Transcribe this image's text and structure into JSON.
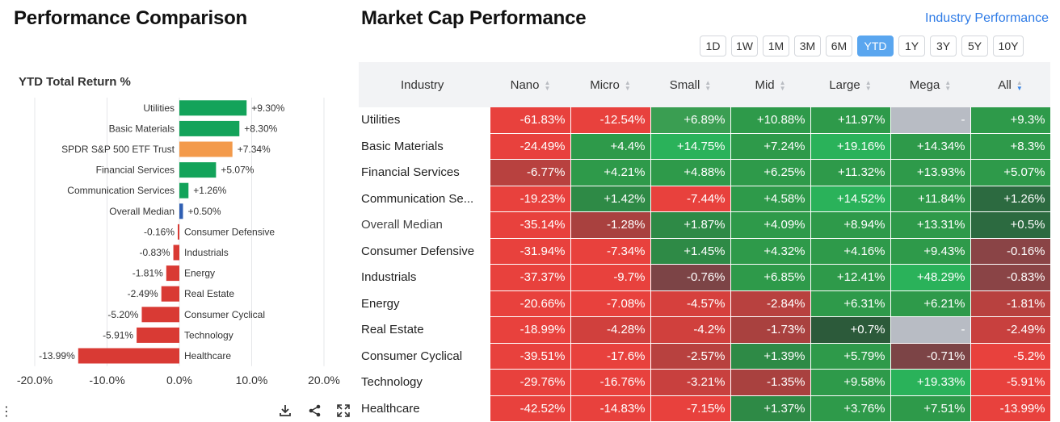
{
  "left_panel": {
    "title": "Performance Comparison",
    "subtitle": "YTD Total Return %",
    "tools": [
      "download-icon",
      "share-icon",
      "expand-icon"
    ]
  },
  "chart_data": {
    "type": "bar",
    "orientation": "horizontal",
    "title": "YTD Total Return %",
    "categories": [
      "Utilities",
      "Basic Materials",
      "SPDR S&P 500 ETF Trust",
      "Financial Services",
      "Communication Services",
      "Overall Median",
      "Consumer Defensive",
      "Industrials",
      "Energy",
      "Real Estate",
      "Consumer Cyclical",
      "Technology",
      "Healthcare"
    ],
    "values": [
      9.3,
      8.3,
      7.34,
      5.07,
      1.26,
      0.5,
      -0.16,
      -0.83,
      -1.81,
      -2.49,
      -5.2,
      -5.91,
      -13.99
    ],
    "value_labels": [
      "+9.30%",
      "+8.30%",
      "+7.34%",
      "+5.07%",
      "+1.26%",
      "+0.50%",
      "-0.16%",
      "-0.83%",
      "-1.81%",
      "-2.49%",
      "-5.20%",
      "-5.91%",
      "-13.99%"
    ],
    "bar_colors": [
      "#13a35a",
      "#13a35a",
      "#f39a4b",
      "#13a35a",
      "#13a35a",
      "#2f5fb3",
      "#d93a34",
      "#d93a34",
      "#d93a34",
      "#d93a34",
      "#d93a34",
      "#d93a34",
      "#d93a34"
    ],
    "xlim": [
      -20,
      20
    ],
    "x_ticks": [
      -20,
      -10,
      0,
      10,
      20
    ],
    "x_tick_labels": [
      "-20.0%",
      "-10.0%",
      "0.0%",
      "10.0%",
      "20.0%"
    ],
    "grid": true
  },
  "right_panel": {
    "title": "Market Cap Performance",
    "link": "Industry Performance",
    "timeframes": [
      "1D",
      "1W",
      "1M",
      "3M",
      "6M",
      "YTD",
      "1Y",
      "3Y",
      "5Y",
      "10Y"
    ],
    "active_timeframe": "YTD",
    "headers": [
      "Industry",
      "Nano",
      "Micro",
      "Small",
      "Mid",
      "Large",
      "Mega",
      "All"
    ],
    "sorted_column": "All",
    "rows": [
      {
        "name": "Utilities",
        "values": [
          "-61.83%",
          "-12.54%",
          "+6.89%",
          "+10.88%",
          "+11.97%",
          "-",
          "+9.3%"
        ],
        "colors": [
          "#e8413d",
          "#e8413d",
          "#3a9e52",
          "#2e9a4a",
          "#2e9a4a",
          "#b8bcc4",
          "#2e9a4a"
        ]
      },
      {
        "name": "Basic Materials",
        "values": [
          "-24.49%",
          "+4.4%",
          "+14.75%",
          "+7.24%",
          "+19.16%",
          "+14.34%",
          "+8.3%"
        ],
        "colors": [
          "#e8413d",
          "#2e9a4a",
          "#2ab25a",
          "#2e9a4a",
          "#2ab25a",
          "#2e9a4a",
          "#2e9a4a"
        ]
      },
      {
        "name": "Financial Services",
        "values": [
          "-6.77%",
          "+4.21%",
          "+4.88%",
          "+6.25%",
          "+11.32%",
          "+13.93%",
          "+5.07%"
        ],
        "colors": [
          "#b8413f",
          "#2e9a4a",
          "#2e9a4a",
          "#2e9a4a",
          "#2e9a4a",
          "#2e9a4a",
          "#2e9a4a"
        ]
      },
      {
        "name": "Communication Se...",
        "values": [
          "-19.23%",
          "+1.42%",
          "-7.44%",
          "+4.58%",
          "+14.52%",
          "+11.84%",
          "+1.26%"
        ],
        "colors": [
          "#e8413d",
          "#2e8a46",
          "#e8413d",
          "#2e9a4a",
          "#2ab25a",
          "#2e9a4a",
          "#2c6a40"
        ]
      },
      {
        "name": "Overall Median",
        "values": [
          "-35.14%",
          "-1.28%",
          "+1.87%",
          "+4.09%",
          "+8.94%",
          "+13.31%",
          "+0.5%"
        ],
        "colors": [
          "#e8413d",
          "#a9413f",
          "#2e8a46",
          "#2e9a4a",
          "#2e9a4a",
          "#2e9a4a",
          "#2c6a40"
        ]
      },
      {
        "name": "Consumer Defensive",
        "values": [
          "-31.94%",
          "-7.34%",
          "+1.45%",
          "+4.32%",
          "+4.16%",
          "+9.43%",
          "-0.16%"
        ],
        "colors": [
          "#e8413d",
          "#e8413d",
          "#2e8a46",
          "#2e9a4a",
          "#2e9a4a",
          "#2e9a4a",
          "#8a4446"
        ]
      },
      {
        "name": "Industrials",
        "values": [
          "-37.37%",
          "-9.7%",
          "-0.76%",
          "+6.85%",
          "+12.41%",
          "+48.29%",
          "-0.83%"
        ],
        "colors": [
          "#e8413d",
          "#e8413d",
          "#7c4446",
          "#2e9a4a",
          "#2e9a4a",
          "#2ab25a",
          "#8a4446"
        ]
      },
      {
        "name": "Energy",
        "values": [
          "-20.66%",
          "-7.08%",
          "-4.57%",
          "-2.84%",
          "+6.31%",
          "+6.21%",
          "-1.81%"
        ],
        "colors": [
          "#e8413d",
          "#e8413d",
          "#d6403d",
          "#b8413f",
          "#2e9a4a",
          "#2e9a4a",
          "#b8413f"
        ]
      },
      {
        "name": "Real Estate",
        "values": [
          "-18.99%",
          "-4.28%",
          "-4.2%",
          "-1.73%",
          "+0.7%",
          "-",
          "-2.49%"
        ],
        "colors": [
          "#e8413d",
          "#d0403d",
          "#d0403d",
          "#a9413f",
          "#2c5a3a",
          "#b8bcc4",
          "#c8403e"
        ]
      },
      {
        "name": "Consumer Cyclical",
        "values": [
          "-39.51%",
          "-17.6%",
          "-2.57%",
          "+1.39%",
          "+5.79%",
          "-0.71%",
          "-5.2%"
        ],
        "colors": [
          "#e8413d",
          "#e8413d",
          "#b8413f",
          "#2e8a46",
          "#2e9a4a",
          "#7c4446",
          "#e8413d"
        ]
      },
      {
        "name": "Technology",
        "values": [
          "-29.76%",
          "-16.76%",
          "-3.21%",
          "-1.35%",
          "+9.58%",
          "+19.33%",
          "-5.91%"
        ],
        "colors": [
          "#e8413d",
          "#e8413d",
          "#c8403e",
          "#a9413f",
          "#2e9a4a",
          "#2ab25a",
          "#e8413d"
        ]
      },
      {
        "name": "Healthcare",
        "values": [
          "-42.52%",
          "-14.83%",
          "-7.15%",
          "+1.37%",
          "+3.76%",
          "+7.51%",
          "-13.99%"
        ],
        "colors": [
          "#e8413d",
          "#e8413d",
          "#e8413d",
          "#2e8a46",
          "#2e9a4a",
          "#2e9a4a",
          "#e8413d"
        ]
      }
    ]
  }
}
